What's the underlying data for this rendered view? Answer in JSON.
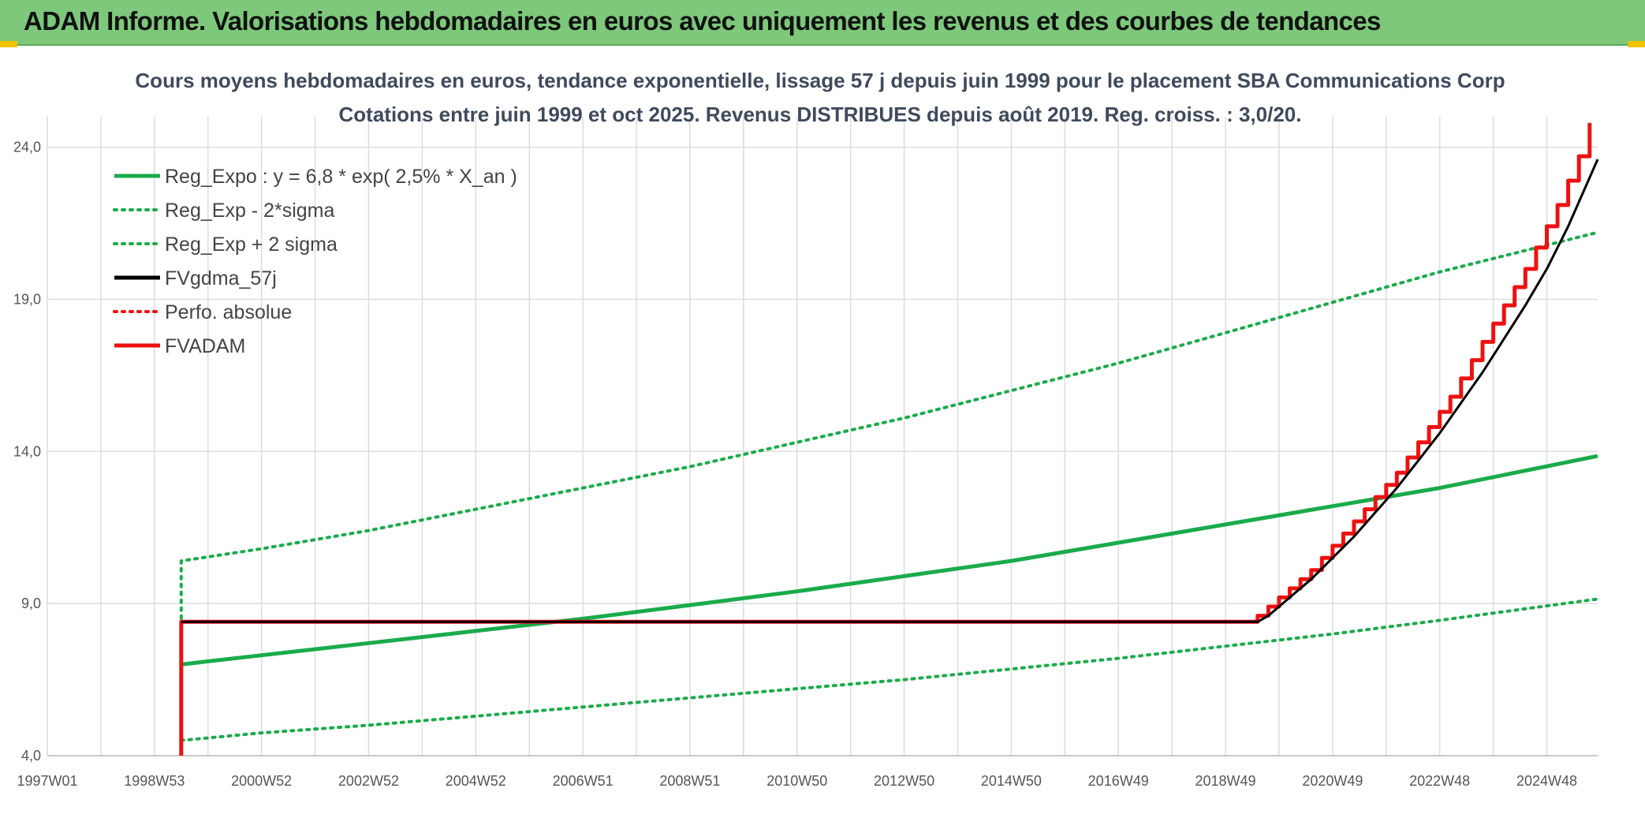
{
  "header": {
    "title": "ADAM Informe. Valorisations hebdomadaires en euros avec uniquement les revenus et des courbes de tendances"
  },
  "colors": {
    "header_bg": "#7dc87b",
    "green": "#1aab4b",
    "red": "#ee1111",
    "black": "#000000",
    "grid": "#dcdcdc",
    "accent": "#f2c200"
  },
  "chart_data": {
    "type": "line",
    "title": "Cours moyens hebdomadaires en euros, tendance exponentielle, lissage 57 j depuis juin 1999 pour le placement SBA Communications Corp",
    "subtitle": "Cotations entre juin 1999 et oct 2025. Revenus DISTRIBUES depuis août 2019. Reg. croiss. : 3,0/20.",
    "xlabel": "",
    "ylabel": "",
    "xlim": [
      1997.0,
      2025.95
    ],
    "ylim": [
      4.0,
      25.0
    ],
    "x_ticks": [
      {
        "label": "1997W01",
        "x": 1997.0
      },
      {
        "label": "1998W53",
        "x": 1999.0
      },
      {
        "label": "2000W52",
        "x": 2001.0
      },
      {
        "label": "2002W52",
        "x": 2003.0
      },
      {
        "label": "2004W52",
        "x": 2005.0
      },
      {
        "label": "2006W51",
        "x": 2007.0
      },
      {
        "label": "2008W51",
        "x": 2009.0
      },
      {
        "label": "2010W50",
        "x": 2011.0
      },
      {
        "label": "2012W50",
        "x": 2013.0
      },
      {
        "label": "2014W50",
        "x": 2015.0
      },
      {
        "label": "2016W49",
        "x": 2017.0
      },
      {
        "label": "2018W49",
        "x": 2019.0
      },
      {
        "label": "2020W49",
        "x": 2021.0
      },
      {
        "label": "2022W48",
        "x": 2023.0
      },
      {
        "label": "2024W48",
        "x": 2025.0
      }
    ],
    "y_ticks": [
      {
        "label": "4,0",
        "y": 4.0
      },
      {
        "label": "9,0",
        "y": 9.0
      },
      {
        "label": "14,0",
        "y": 14.0
      },
      {
        "label": "19,0",
        "y": 19.0
      },
      {
        "label": "24,0",
        "y": 24.0
      }
    ],
    "legend_position": "top-left",
    "series": [
      {
        "name": "Reg_Expo : y = 6,8 * exp( 2,5% *  X_an )",
        "style": "solid",
        "color": "#1aab4b",
        "width": 5,
        "x": [
          1999.5,
          2001,
          2003,
          2005,
          2007,
          2009,
          2011,
          2013,
          2015,
          2017,
          2019,
          2021,
          2023,
          2025.95
        ],
        "y": [
          7.0,
          7.3,
          7.7,
          8.1,
          8.5,
          8.95,
          9.4,
          9.9,
          10.4,
          11.0,
          11.6,
          12.2,
          12.8,
          13.85
        ]
      },
      {
        "name": "Reg_Exp - 2*sigma",
        "style": "dotted",
        "color": "#1aab4b",
        "width": 4,
        "x": [
          1999.5,
          2001,
          2003,
          2005,
          2007,
          2009,
          2011,
          2013,
          2015,
          2017,
          2019,
          2021,
          2023,
          2025.95
        ],
        "y": [
          4.5,
          4.75,
          5.0,
          5.3,
          5.6,
          5.9,
          6.2,
          6.5,
          6.85,
          7.2,
          7.6,
          8.0,
          8.45,
          9.15
        ]
      },
      {
        "name": "Reg_Exp + 2 sigma",
        "style": "dotted",
        "color": "#1aab4b",
        "width": 4,
        "x": [
          1999.5,
          1999.5,
          2001,
          2003,
          2005,
          2007,
          2009,
          2011,
          2013,
          2015,
          2017,
          2019,
          2021,
          2023,
          2025.95
        ],
        "y": [
          8.0,
          10.4,
          10.8,
          11.4,
          12.1,
          12.8,
          13.5,
          14.3,
          15.1,
          16.0,
          16.9,
          17.9,
          18.9,
          19.9,
          21.2
        ]
      },
      {
        "name": "FVgdma_57j",
        "style": "solid",
        "color": "#000000",
        "width": 3,
        "x": [
          1999.5,
          2019.6,
          2019.8,
          2020.2,
          2020.6,
          2021.0,
          2021.4,
          2021.8,
          2022.2,
          2022.6,
          2023.0,
          2023.4,
          2023.8,
          2024.2,
          2024.6,
          2025.0,
          2025.4,
          2025.95
        ],
        "y": [
          8.4,
          8.4,
          8.6,
          9.2,
          9.8,
          10.5,
          11.2,
          12.0,
          12.8,
          13.7,
          14.6,
          15.6,
          16.6,
          17.7,
          18.8,
          20.0,
          21.4,
          23.6
        ]
      },
      {
        "name": "Perfo. absolue",
        "style": "dotted",
        "color": "#ee1111",
        "width": 3,
        "x": [],
        "y": []
      },
      {
        "name": "FVADAM",
        "style": "solid",
        "color": "#ee1111",
        "width": 5,
        "x": [
          1999.5,
          1999.5,
          2019.6,
          2019.6,
          2019.8,
          2019.8,
          2020.0,
          2020.0,
          2020.2,
          2020.2,
          2020.4,
          2020.4,
          2020.6,
          2020.6,
          2020.8,
          2020.8,
          2021.0,
          2021.0,
          2021.2,
          2021.2,
          2021.4,
          2021.4,
          2021.6,
          2021.6,
          2021.8,
          2021.8,
          2022.0,
          2022.0,
          2022.2,
          2022.2,
          2022.4,
          2022.4,
          2022.6,
          2022.6,
          2022.8,
          2022.8,
          2023.0,
          2023.0,
          2023.2,
          2023.2,
          2023.4,
          2023.4,
          2023.6,
          2023.6,
          2023.8,
          2023.8,
          2024.0,
          2024.0,
          2024.2,
          2024.2,
          2024.4,
          2024.4,
          2024.6,
          2024.6,
          2024.8,
          2024.8,
          2025.0,
          2025.0,
          2025.2,
          2025.2,
          2025.4,
          2025.4,
          2025.6,
          2025.6,
          2025.8,
          2025.8
        ],
        "y": [
          4.0,
          8.4,
          8.4,
          8.6,
          8.6,
          8.9,
          8.9,
          9.2,
          9.2,
          9.5,
          9.5,
          9.8,
          9.8,
          10.1,
          10.1,
          10.5,
          10.5,
          10.9,
          10.9,
          11.3,
          11.3,
          11.7,
          11.7,
          12.1,
          12.1,
          12.5,
          12.5,
          12.9,
          12.9,
          13.3,
          13.3,
          13.8,
          13.8,
          14.3,
          14.3,
          14.8,
          14.8,
          15.3,
          15.3,
          15.8,
          15.8,
          16.4,
          16.4,
          17.0,
          17.0,
          17.6,
          17.6,
          18.2,
          18.2,
          18.8,
          18.8,
          19.4,
          19.4,
          20.0,
          20.0,
          20.7,
          20.7,
          21.4,
          21.4,
          22.1,
          22.1,
          22.9,
          22.9,
          23.7,
          23.7,
          24.8
        ]
      }
    ]
  }
}
